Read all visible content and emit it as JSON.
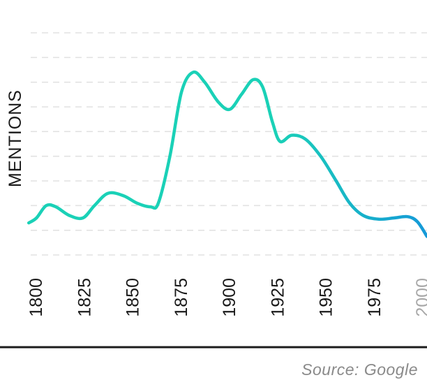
{
  "chart_data": {
    "type": "line",
    "ylabel": "MENTIONS",
    "xlabel": "",
    "x_ticks": [
      "1800",
      "1825",
      "1850",
      "1875",
      "1900",
      "1925",
      "1950",
      "1975",
      "2000"
    ],
    "x_tick_muted": [
      "2000"
    ],
    "xlim": [
      1800,
      2005
    ],
    "ylim": [
      0,
      9
    ],
    "grid": true,
    "series": [
      {
        "x": [
          1799,
          1803,
          1808,
          1813,
          1820,
          1827,
          1833,
          1840,
          1848,
          1855,
          1862,
          1866,
          1872,
          1878,
          1884,
          1890,
          1897,
          1903,
          1909,
          1915,
          1920,
          1925,
          1929,
          1935,
          1942,
          1950,
          1958,
          1965,
          1972,
          1980,
          1988,
          1995,
          2000,
          2005
        ],
        "y": [
          1.3,
          1.5,
          2.0,
          1.95,
          1.6,
          1.5,
          2.0,
          2.5,
          2.4,
          2.1,
          1.95,
          2.1,
          4.0,
          6.6,
          7.4,
          7.0,
          6.2,
          5.9,
          6.5,
          7.1,
          6.8,
          5.4,
          4.6,
          4.85,
          4.7,
          4.0,
          3.0,
          2.1,
          1.6,
          1.45,
          1.5,
          1.55,
          1.35,
          0.75
        ],
        "colors": [
          "#1ad1b7",
          "#1599d8"
        ]
      }
    ],
    "source": "Source: Google"
  }
}
